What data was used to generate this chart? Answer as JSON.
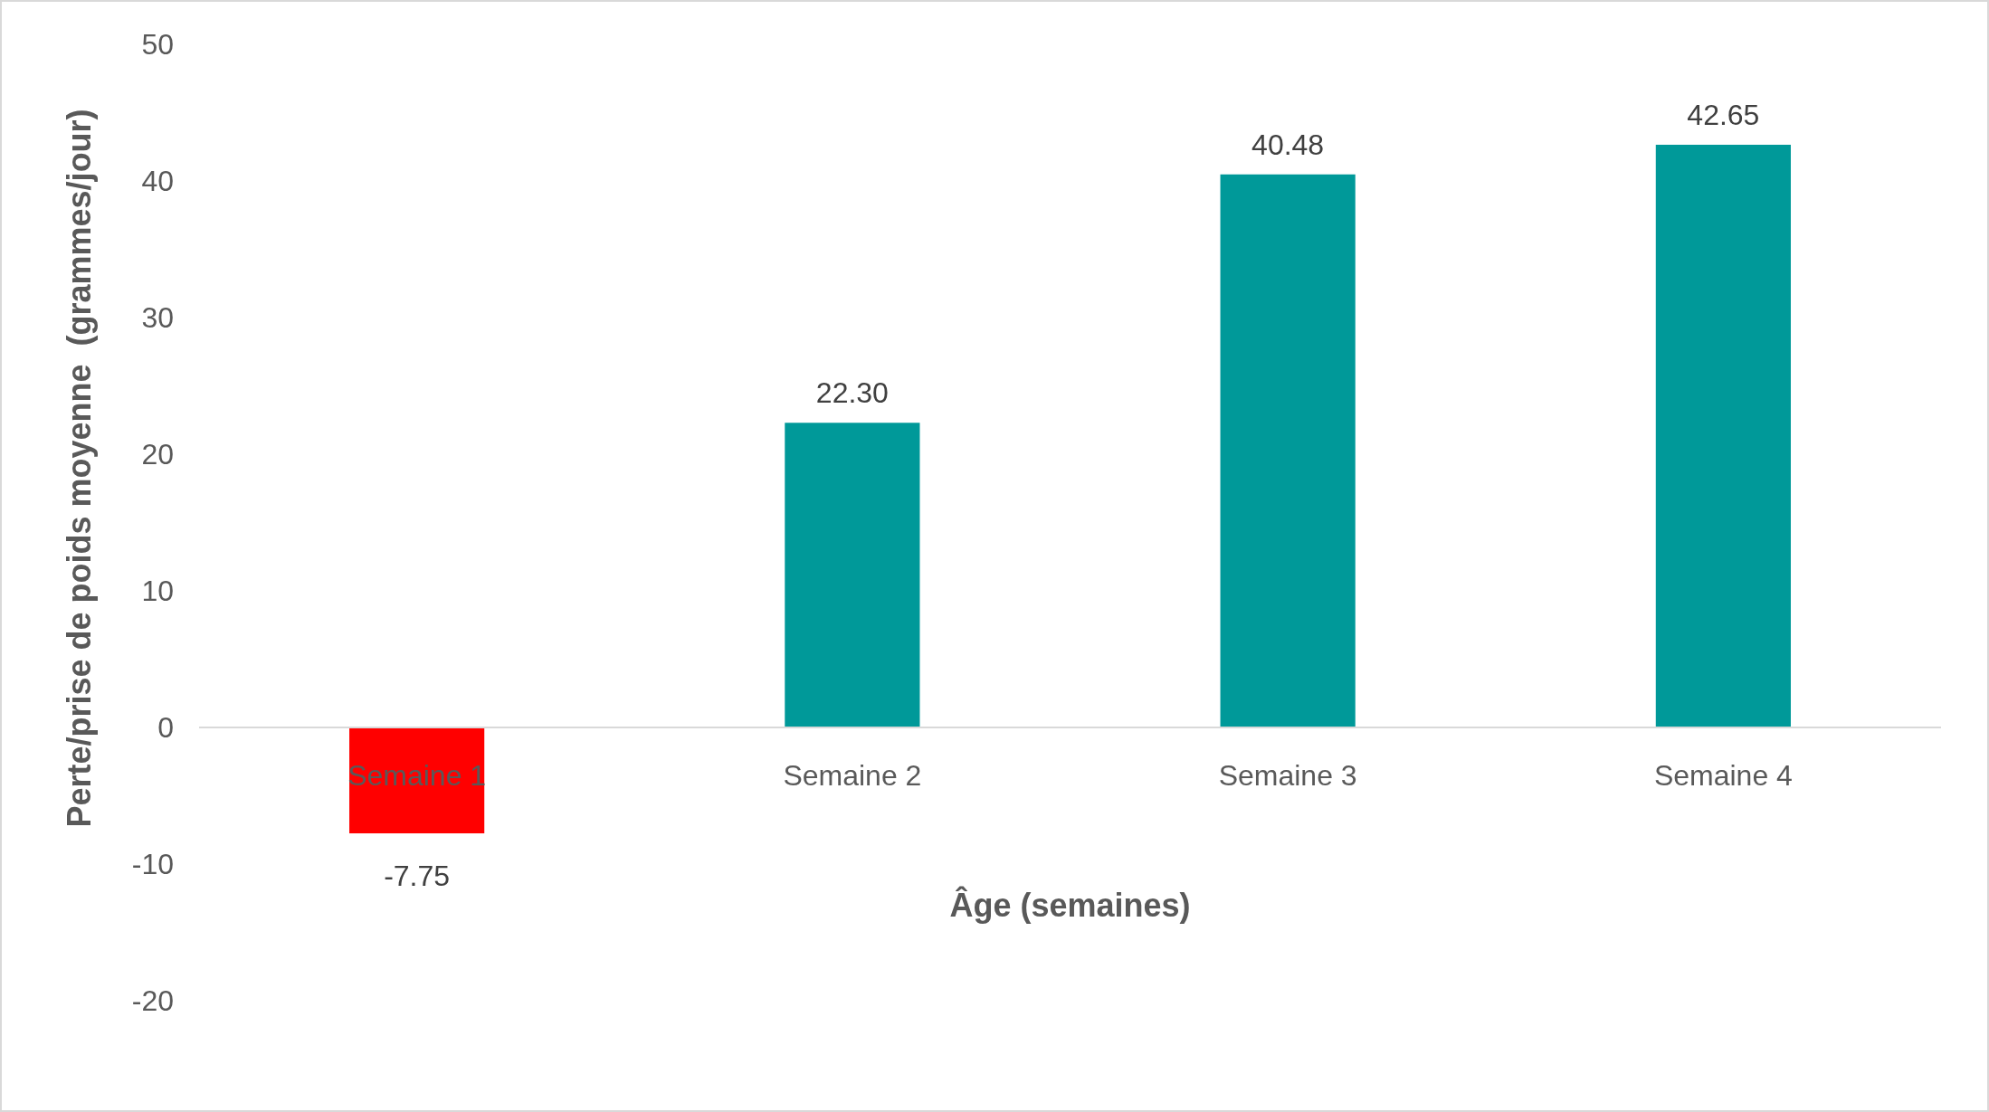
{
  "chart_data": {
    "type": "bar",
    "xlabel": "Âge (semaines)",
    "ylabel": "Perte/prise de poids moyenne  (grammes/jour)",
    "categories": [
      "Semaine 1",
      "Semaine 2",
      "Semaine 3",
      "Semaine 4"
    ],
    "values": [
      -7.75,
      22.3,
      40.48,
      42.65
    ],
    "colors": [
      "#ff0000",
      "#009999",
      "#009999",
      "#009999"
    ],
    "value_labels": [
      "-7.75",
      "22.30",
      "40.48",
      "42.65"
    ],
    "ylim": [
      -20,
      50
    ],
    "yticks": [
      -20,
      -10,
      0,
      10,
      20,
      30,
      40,
      50
    ],
    "grid": false
  }
}
